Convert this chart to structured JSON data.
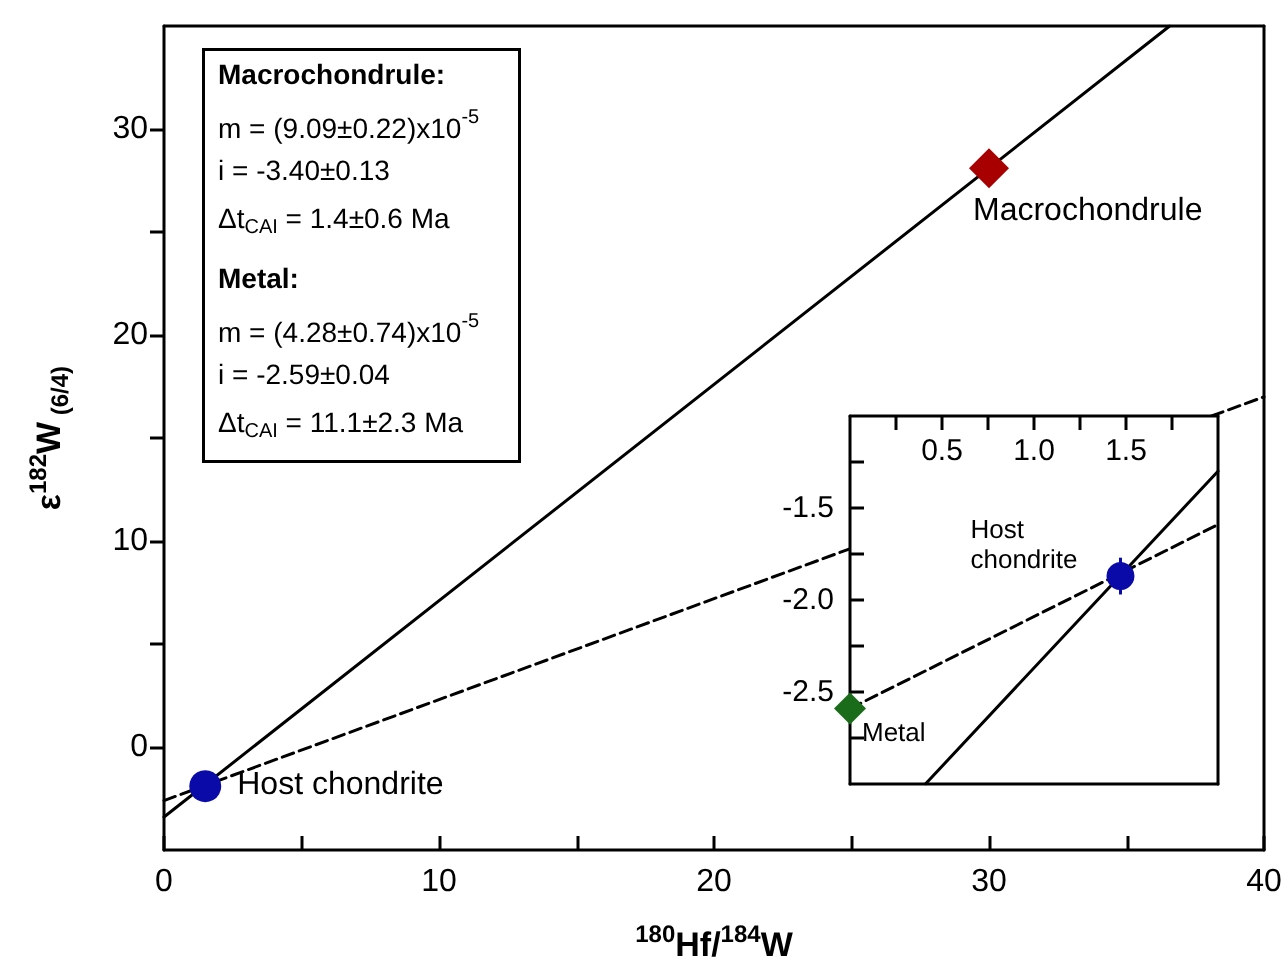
{
  "chart_data": [
    {
      "type": "scatter",
      "xlabel": "$^{180}$Hf/$^{184}$W",
      "ylabel": "ε$^{182}$W$_{ (6/4)}$",
      "annotations": [
        "Macrochondrule:",
        "m = (9.09±0.22)x10$^{-5}$",
        "i = -3.40±0.13",
        "Δt$_{CAI}$ = 1.4±0.6 Ma",
        "Metal:",
        "m = (4.28±0.74)x10$^{-5}$",
        "i = -2.59±0.04",
        "Δt$_{CAI}$ = 11.1±2.3 Ma"
      ],
      "xlim": [
        0,
        40
      ],
      "ylim": [
        -5,
        35
      ],
      "xticks": [
        0,
        {
          "value": 5,
          "label": null
        },
        10,
        {
          "value": 15,
          "label": null
        },
        20,
        {
          "value": 25,
          "label": null
        },
        30,
        {
          "value": 35,
          "label": null
        },
        40
      ],
      "yticks": [
        0,
        {
          "value": 5,
          "label": null
        },
        10,
        {
          "value": 15,
          "label": null
        },
        20,
        {
          "value": 25,
          "label": null
        },
        30
      ],
      "series": [
        {
          "type": "line",
          "color": "#000000",
          "line_style": "solid",
          "marker": "none",
          "x": [
            0,
            36.57
          ],
          "values": [
            -3.4,
            35
          ]
        },
        {
          "type": "line",
          "color": "#000000",
          "line_style": "dashed",
          "marker": "none",
          "x": [
            0,
            40
          ],
          "values": [
            -2.6,
            17.0
          ]
        },
        {
          "name": "Macrochondrule",
          "color": "#a80000",
          "marker": "diamond",
          "x": [
            30
          ],
          "values": [
            28.1
          ]
        },
        {
          "name": "Host chondrite",
          "color": "#0a0aa8",
          "marker": "circle",
          "x": [
            1.5
          ],
          "values": [
            -1.9
          ]
        }
      ]
    },
    {
      "type": "scatter",
      "xlim": [
        0,
        2
      ],
      "ylim": [
        -3,
        -1
      ],
      "xticks": [
        {
          "value": 0.25,
          "label": null
        },
        0.5,
        {
          "value": 0.75,
          "label": null
        },
        {
          "value": 1,
          "label": "1.0"
        },
        {
          "value": 1.25,
          "label": null
        },
        1.5,
        {
          "value": 1.75,
          "label": null
        }
      ],
      "yticks": [
        {
          "value": -2.75,
          "label": null
        },
        -2.5,
        {
          "value": -2.25,
          "label": null
        },
        {
          "value": -2,
          "label": "-2.0"
        },
        {
          "value": -1.75,
          "label": null
        },
        -1.5,
        {
          "value": -1.25,
          "label": null
        }
      ],
      "series": [
        {
          "type": "line",
          "color": "#000000",
          "line_style": "solid",
          "marker": "none",
          "x": [
            0.41,
            2
          ],
          "values": [
            -3,
            -1.3
          ]
        },
        {
          "type": "line",
          "color": "#000000",
          "line_style": "dashed",
          "marker": "none",
          "x": [
            0,
            2
          ],
          "values": [
            -2.59,
            -1.59
          ]
        },
        {
          "name": "Metal",
          "color": "#1a6b1a",
          "marker": "diamond",
          "x": [
            0
          ],
          "values": [
            -2.59
          ]
        },
        {
          "name": "Host chondrite",
          "color": "#0a0aa8",
          "marker": "circle",
          "x": [
            1.47
          ],
          "values": [
            -1.87
          ],
          "errors": [
            0.1
          ]
        }
      ]
    }
  ]
}
